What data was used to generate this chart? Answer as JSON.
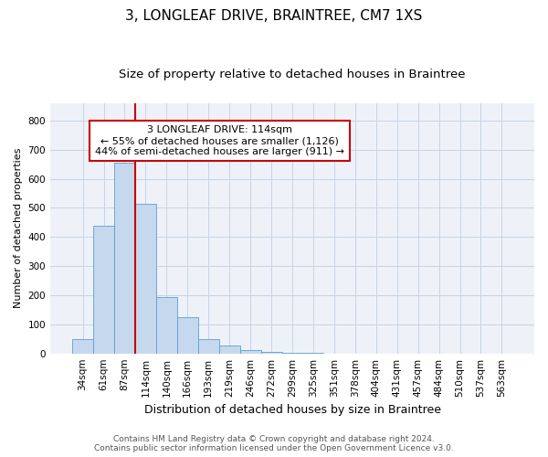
{
  "title": "3, LONGLEAF DRIVE, BRAINTREE, CM7 1XS",
  "subtitle": "Size of property relative to detached houses in Braintree",
  "xlabel": "Distribution of detached houses by size in Braintree",
  "ylabel": "Number of detached properties",
  "categories": [
    "34sqm",
    "61sqm",
    "87sqm",
    "114sqm",
    "140sqm",
    "166sqm",
    "193sqm",
    "219sqm",
    "246sqm",
    "272sqm",
    "299sqm",
    "325sqm",
    "351sqm",
    "378sqm",
    "404sqm",
    "431sqm",
    "457sqm",
    "484sqm",
    "510sqm",
    "537sqm",
    "563sqm"
  ],
  "values": [
    50,
    440,
    655,
    515,
    195,
    125,
    50,
    27,
    10,
    4,
    2,
    1,
    0,
    0,
    0,
    0,
    0,
    0,
    0,
    0,
    0
  ],
  "bar_color": "#c5d8ee",
  "bar_edge_color": "#5a9fd4",
  "vline_index": 3,
  "vline_color": "#cc0000",
  "annotation_text": "3 LONGLEAF DRIVE: 114sqm\n← 55% of detached houses are smaller (1,126)\n44% of semi-detached houses are larger (911) →",
  "annotation_box_color": "#cc0000",
  "ylim": [
    0,
    860
  ],
  "yticks": [
    0,
    100,
    200,
    300,
    400,
    500,
    600,
    700,
    800
  ],
  "grid_color": "#c5d4e8",
  "bg_color": "#eef2f8",
  "footer1": "Contains HM Land Registry data © Crown copyright and database right 2024.",
  "footer2": "Contains public sector information licensed under the Open Government Licence v3.0.",
  "title_fontsize": 11,
  "subtitle_fontsize": 9.5,
  "xlabel_fontsize": 9,
  "ylabel_fontsize": 8,
  "tick_fontsize": 7.5,
  "annotation_fontsize": 8,
  "footer_fontsize": 6.5
}
